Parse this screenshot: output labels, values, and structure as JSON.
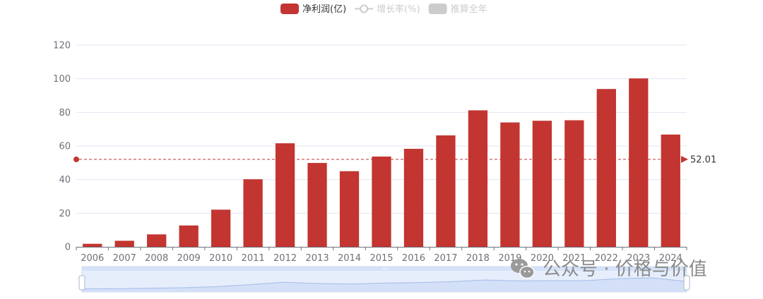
{
  "chart_data": {
    "type": "bar",
    "categories": [
      "2006",
      "2007",
      "2008",
      "2009",
      "2010",
      "2011",
      "2012",
      "2013",
      "2014",
      "2015",
      "2016",
      "2017",
      "2018",
      "2019",
      "2020",
      "2021",
      "2022",
      "2023",
      "2024"
    ],
    "series": [
      {
        "name": "净利润(亿)",
        "color": "#c23531",
        "values": [
          1.8,
          3.6,
          7.4,
          12.7,
          22.1,
          40.2,
          61.6,
          49.9,
          45.0,
          53.7,
          58.3,
          66.3,
          81.2,
          74.0,
          75.0,
          75.3,
          93.9,
          100.2,
          66.8
        ]
      }
    ],
    "legend": [
      {
        "label": "净利润(亿)",
        "symbol": "rect",
        "color": "#c23531",
        "active": true
      },
      {
        "label": "增长率(%)",
        "symbol": "line-circle",
        "color": "#cccccc",
        "active": false
      },
      {
        "label": "推算全年",
        "symbol": "rect",
        "color": "#cccccc",
        "active": false
      }
    ],
    "legend_position": "top-center",
    "y_ticks": [
      "0",
      "20",
      "40",
      "60",
      "80",
      "100",
      "120"
    ],
    "ylim": [
      0,
      120
    ],
    "grid": true,
    "average_line": {
      "value": 52.01,
      "label": "52.01",
      "color": "#c23531"
    },
    "datazoom": {
      "enabled": true,
      "range": [
        0,
        100
      ]
    }
  },
  "watermark": {
    "text": "公众号 · 价格与价值",
    "icon": "wechat-icon"
  }
}
